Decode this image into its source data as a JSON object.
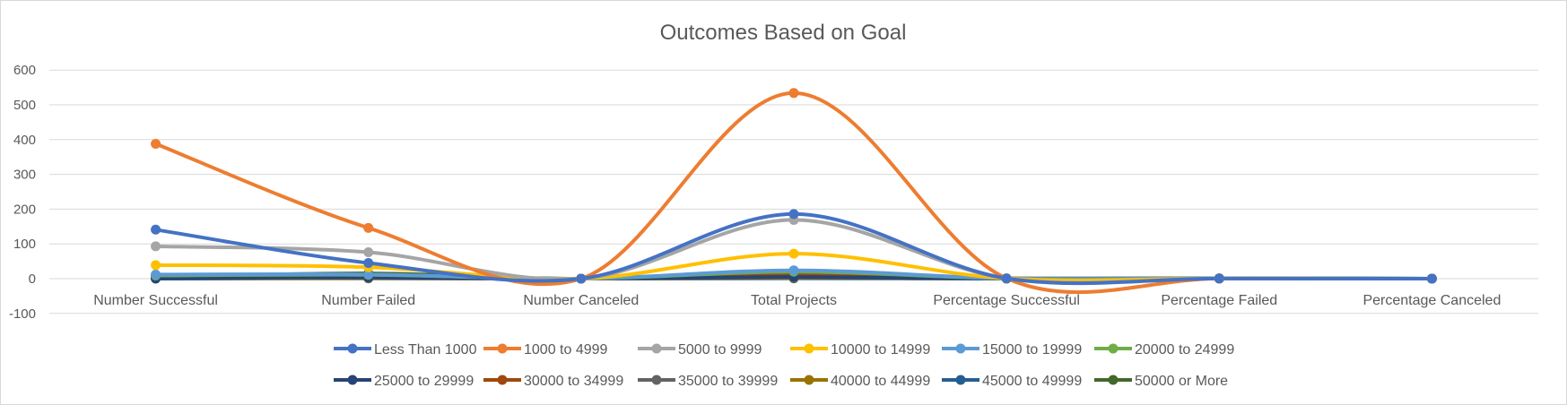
{
  "chart_data": {
    "type": "line",
    "smooth": true,
    "title": "Outcomes Based on Goal",
    "xlabel": "",
    "ylabel": "",
    "ylim": [
      -100,
      600
    ],
    "yticks": [
      -100,
      0,
      100,
      200,
      300,
      400,
      500,
      600
    ],
    "grid": true,
    "legend_position": "bottom",
    "categories": [
      "Number Successful",
      "Number Failed",
      "Number Canceled",
      "Total Projects",
      "Percentage Successful",
      "Percentage Failed",
      "Percentage Canceled"
    ],
    "series": [
      {
        "name": "Less Than 1000",
        "color": "#4472C4",
        "values": [
          141,
          45,
          0,
          186,
          0.76,
          0.24,
          0
        ]
      },
      {
        "name": "1000 to 4999",
        "color": "#ED7D31",
        "values": [
          388,
          146,
          0,
          534,
          0.73,
          0.27,
          0
        ]
      },
      {
        "name": "5000 to 9999",
        "color": "#A5A5A5",
        "values": [
          93,
          76,
          0,
          169,
          0.55,
          0.45,
          0
        ]
      },
      {
        "name": "10000 to 14999",
        "color": "#FFC000",
        "values": [
          39,
          33,
          0,
          72,
          0.54,
          0.46,
          0
        ]
      },
      {
        "name": "15000 to 19999",
        "color": "#5B9BD5",
        "values": [
          12,
          12,
          0,
          24,
          0.5,
          0.5,
          0
        ]
      },
      {
        "name": "20000 to 24999",
        "color": "#70AD47",
        "values": [
          9,
          11,
          0,
          20,
          0.45,
          0.55,
          0
        ]
      },
      {
        "name": "25000 to 29999",
        "color": "#264478",
        "values": [
          1,
          4,
          0,
          5,
          0.2,
          0.8,
          0
        ]
      },
      {
        "name": "30000 to 34999",
        "color": "#9E480E",
        "values": [
          3,
          8,
          0,
          11,
          0.27,
          0.73,
          0
        ]
      },
      {
        "name": "35000 to 39999",
        "color": "#636363",
        "values": [
          4,
          2,
          0,
          6,
          0.67,
          0.33,
          0
        ]
      },
      {
        "name": "40000 to 44999",
        "color": "#997300",
        "values": [
          2,
          1,
          0,
          3,
          0.67,
          0.33,
          0
        ]
      },
      {
        "name": "45000 to 49999",
        "color": "#255E91",
        "values": [
          0,
          1,
          0,
          1,
          0,
          1,
          0
        ]
      },
      {
        "name": "50000 or More",
        "color": "#43682B",
        "values": [
          5,
          15,
          0,
          20,
          0.25,
          0.75,
          0
        ]
      }
    ]
  }
}
